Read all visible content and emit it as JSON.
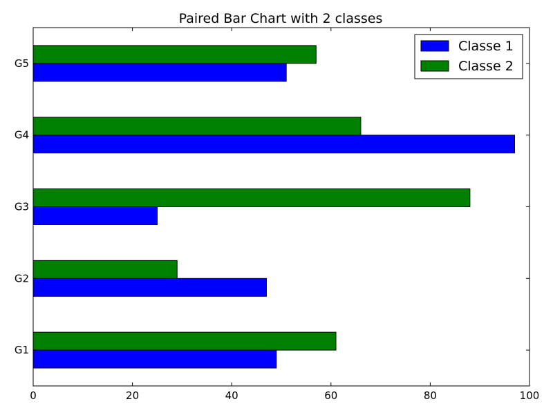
{
  "chart_data": {
    "type": "bar",
    "orientation": "horizontal",
    "title": "Paired Bar Chart with 2 classes",
    "xlabel": "",
    "ylabel": "",
    "categories": [
      "G1",
      "G2",
      "G3",
      "G4",
      "G5"
    ],
    "series": [
      {
        "name": "Classe 1",
        "color": "#0000ff",
        "values": [
          49,
          47,
          25,
          97,
          51
        ]
      },
      {
        "name": "Classe 2",
        "color": "#008000",
        "values": [
          61,
          29,
          88,
          66,
          57
        ]
      }
    ],
    "xlim": [
      0,
      100
    ],
    "xticks": [
      0,
      20,
      40,
      60,
      80,
      100
    ],
    "grid": false,
    "legend_position": "top-right"
  }
}
